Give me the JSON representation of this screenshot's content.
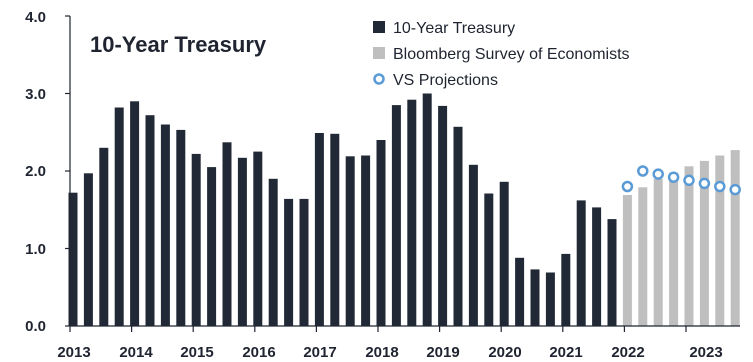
{
  "chart_data": {
    "type": "bar",
    "title": "10-Year Treasury",
    "ylim": [
      0,
      4
    ],
    "yticks": [
      "0.0",
      "1.0",
      "2.0",
      "3.0",
      "4.0"
    ],
    "xticks": [
      "2013",
      "2014",
      "2015",
      "2016",
      "2017",
      "2018",
      "2019",
      "2020",
      "2021",
      "2022",
      "2023"
    ],
    "grid": false,
    "legend_position": "top-right",
    "colors": {
      "treasury": "#222936",
      "survey": "#bfbfbf",
      "projection": "#5b9bd5",
      "axis": "#1f2430"
    },
    "series": [
      {
        "name": "10-Year Treasury",
        "kind": "bar",
        "values": [
          1.72,
          1.97,
          2.3,
          2.82,
          2.9,
          2.72,
          2.6,
          2.53,
          2.22,
          2.05,
          2.37,
          2.17,
          2.25,
          1.9,
          1.64,
          1.64,
          2.49,
          2.48,
          2.19,
          2.2,
          2.4,
          2.85,
          2.92,
          3.0,
          2.84,
          2.57,
          2.08,
          1.71,
          1.86,
          0.88,
          0.73,
          0.69,
          0.93,
          1.62,
          1.53,
          1.38
        ]
      },
      {
        "name": "Bloomberg Survey of Economists",
        "kind": "bar",
        "values": [
          1.69,
          1.79,
          1.9,
          1.98,
          2.06,
          2.13,
          2.2,
          2.27
        ]
      },
      {
        "name": "VS Projections",
        "kind": "scatter",
        "values": [
          1.8,
          2.0,
          1.96,
          1.92,
          1.88,
          1.84,
          1.8,
          1.76
        ]
      }
    ]
  }
}
